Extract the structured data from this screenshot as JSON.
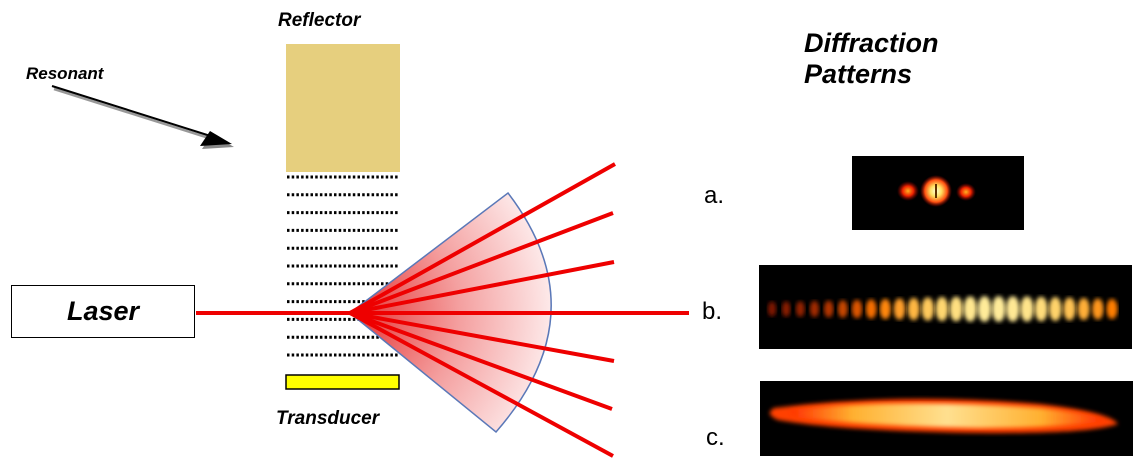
{
  "labels": {
    "reflector": "Reflector",
    "resonant": "Resonant",
    "transducer": "Transducer",
    "laser": "Laser",
    "diffraction_line1": "Diffraction",
    "diffraction_line2": "Patterns",
    "pattern_a": "a.",
    "pattern_b": "b.",
    "pattern_c": "c."
  },
  "colors": {
    "reflector": "#e6cf7e",
    "transducer": "#ffff00",
    "laser_beam": "#ee0000",
    "fan_stroke": "#5a78b8",
    "fan_fill": "#f08080",
    "pattern_background": "#000000"
  },
  "icons": [
    "arrow-icon"
  ]
}
